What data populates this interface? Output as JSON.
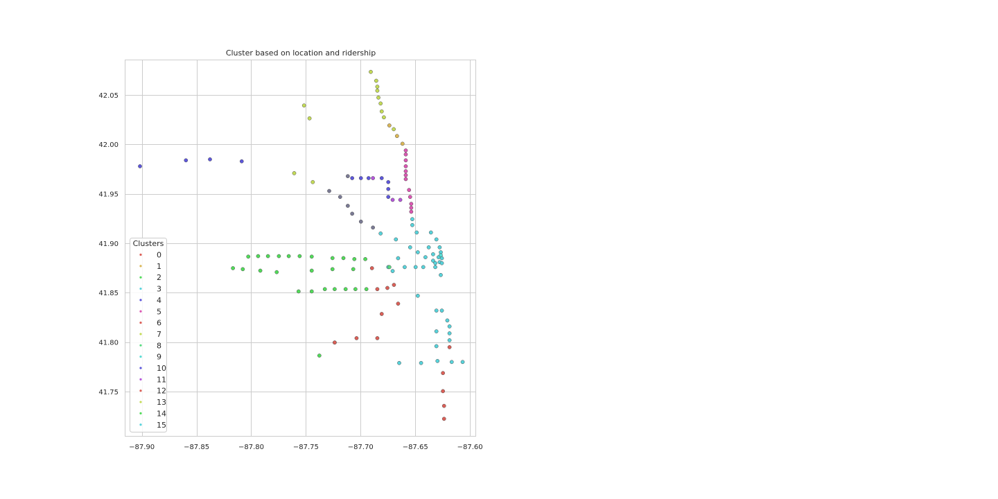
{
  "chart_data": {
    "type": "scatter",
    "title": "Cluster based on location and ridership",
    "xlabel": "",
    "ylabel": "",
    "xlim": [
      -87.915,
      -87.595
    ],
    "ylim": [
      41.705,
      42.085
    ],
    "xticks": [
      -87.9,
      -87.85,
      -87.8,
      -87.75,
      -87.7,
      -87.65,
      -87.6
    ],
    "xtick_labels": [
      "−87.90",
      "−87.85",
      "−87.80",
      "−87.75",
      "−87.70",
      "−87.65",
      "−87.60"
    ],
    "yticks": [
      41.75,
      41.8,
      41.85,
      41.9,
      41.95,
      42.0,
      42.05
    ],
    "ytick_labels": [
      "41.75",
      "41.80",
      "41.85",
      "41.90",
      "41.95",
      "42.00",
      "42.05"
    ],
    "grid": true,
    "legend": {
      "title": "Clusters",
      "placement": "lower-left",
      "entries": [
        "0",
        "1",
        "2",
        "3",
        "4",
        "5",
        "6",
        "7",
        "8",
        "9",
        "10",
        "11",
        "12",
        "13",
        "14",
        "15"
      ]
    },
    "series": [
      {
        "name": "0",
        "color": "#db5f57",
        "points": [
          [
            -87.6896,
            41.8747
          ],
          [
            -87.6847,
            41.8535
          ],
          [
            -87.6755,
            41.8547
          ],
          [
            -87.6695,
            41.8578
          ],
          [
            -87.6657,
            41.8388
          ],
          [
            -87.6807,
            41.8284
          ],
          [
            -87.7037,
            41.8039
          ],
          [
            -87.6847,
            41.8039
          ],
          [
            -87.6247,
            41.7686
          ],
          [
            -87.6247,
            41.7503
          ],
          [
            -87.6237,
            41.7354
          ],
          [
            -87.6237,
            41.7223
          ]
        ]
      },
      {
        "name": "1",
        "color": "#dbb757",
        "points": [
          [
            -87.6737,
            42.0191
          ],
          [
            -87.6667,
            42.0084
          ],
          [
            -87.6617,
            42.0006
          ]
        ]
      },
      {
        "name": "2",
        "color": "#52db5a",
        "points": [
          [
            -87.8027,
            41.8864
          ],
          [
            -87.7937,
            41.8869
          ],
          [
            -87.7847,
            41.8869
          ],
          [
            -87.7747,
            41.8869
          ],
          [
            -87.7657,
            41.8869
          ],
          [
            -87.7557,
            41.8869
          ],
          [
            -87.7447,
            41.8864
          ],
          [
            -87.7257,
            41.8849
          ],
          [
            -87.7157,
            41.8849
          ],
          [
            -87.7057,
            41.8839
          ],
          [
            -87.6957,
            41.8839
          ],
          [
            -87.8167,
            41.8747
          ],
          [
            -87.8077,
            41.8737
          ],
          [
            -87.7917,
            41.8722
          ],
          [
            -87.7767,
            41.8707
          ],
          [
            -87.7447,
            41.8722
          ],
          [
            -87.7257,
            41.8737
          ],
          [
            -87.7067,
            41.8737
          ],
          [
            -87.7567,
            41.8512
          ],
          [
            -87.7447,
            41.8512
          ],
          [
            -87.7327,
            41.8535
          ],
          [
            -87.7237,
            41.8535
          ],
          [
            -87.7137,
            41.8535
          ],
          [
            -87.7047,
            41.8535
          ],
          [
            -87.6947,
            41.8535
          ],
          [
            -87.7237,
            41.7995
          ],
          [
            -87.7377,
            41.7863
          ]
        ]
      },
      {
        "name": "3",
        "color": "#57d3db",
        "points": [
          [
            -87.6527,
            41.9243
          ],
          [
            -87.6527,
            41.9183
          ],
          [
            -87.6487,
            41.9108
          ],
          [
            -87.6357,
            41.9108
          ],
          [
            -87.6817,
            41.9098
          ],
          [
            -87.6677,
            41.9038
          ],
          [
            -87.6307,
            41.9038
          ],
          [
            -87.6547,
            41.8958
          ],
          [
            -87.6377,
            41.8958
          ],
          [
            -87.6277,
            41.8958
          ],
          [
            -87.6477,
            41.8908
          ],
          [
            -87.6337,
            41.8888
          ],
          [
            -87.6267,
            41.8908
          ],
          [
            -87.6657,
            41.8848
          ],
          [
            -87.6407,
            41.8858
          ],
          [
            -87.6337,
            41.8823
          ],
          [
            -87.6287,
            41.8858
          ],
          [
            -87.6257,
            41.8848
          ],
          [
            -87.6277,
            41.8808
          ],
          [
            -87.6257,
            41.8798
          ],
          [
            -87.6317,
            41.8798
          ],
          [
            -87.6747,
            41.8758
          ],
          [
            -87.6597,
            41.8758
          ],
          [
            -87.6497,
            41.8758
          ],
          [
            -87.6427,
            41.8758
          ],
          [
            -87.6317,
            41.8758
          ],
          [
            -87.6707,
            41.8718
          ],
          [
            -87.6267,
            41.8678
          ],
          [
            -87.6477,
            41.8468
          ],
          [
            -87.6307,
            41.8318
          ],
          [
            -87.6257,
            41.8318
          ],
          [
            -87.6207,
            41.8218
          ],
          [
            -87.6187,
            41.8158
          ],
          [
            -87.6187,
            41.8088
          ],
          [
            -87.6307,
            41.8108
          ],
          [
            -87.6187,
            41.8018
          ],
          [
            -87.6307,
            41.7958
          ],
          [
            -87.6297,
            41.7808
          ],
          [
            -87.6647,
            41.7788
          ],
          [
            -87.6447,
            41.7788
          ],
          [
            -87.6167,
            41.7798
          ],
          [
            -87.6067,
            41.7798
          ]
        ]
      },
      {
        "name": "4",
        "color": "#5d57db",
        "points": [
          [
            -87.8597,
            41.9838
          ],
          [
            -87.8377,
            41.9848
          ],
          [
            -87.8087,
            41.9828
          ],
          [
            -87.7077,
            41.9658
          ],
          [
            -87.6997,
            41.9658
          ],
          [
            -87.6927,
            41.9658
          ],
          [
            -87.6807,
            41.9658
          ],
          [
            -87.6747,
            41.9618
          ],
          [
            -87.6747,
            41.9548
          ],
          [
            -87.6747,
            41.9468
          ]
        ]
      },
      {
        "name": "5",
        "color": "#db57b2",
        "points": [
          [
            -87.6587,
            41.9938
          ],
          [
            -87.6587,
            41.9898
          ],
          [
            -87.6587,
            41.9838
          ],
          [
            -87.6587,
            41.9778
          ],
          [
            -87.6587,
            41.9728
          ],
          [
            -87.6587,
            41.9688
          ],
          [
            -87.6587,
            41.9648
          ],
          [
            -87.6557,
            41.9538
          ],
          [
            -87.6547,
            41.9468
          ],
          [
            -87.6537,
            41.9398
          ],
          [
            -87.6537,
            41.9358
          ],
          [
            -87.6537,
            41.9318
          ]
        ]
      },
      {
        "name": "6",
        "color": "#db5f57",
        "points": [
          [
            -87.7237,
            41.7995
          ]
        ]
      },
      {
        "name": "7",
        "color": "#c4db57",
        "points": [
          [
            -87.6907,
            42.0733
          ],
          [
            -87.6857,
            42.0643
          ],
          [
            -87.6847,
            42.0583
          ],
          [
            -87.6847,
            42.0543
          ],
          [
            -87.6837,
            42.0473
          ],
          [
            -87.6817,
            42.0413
          ],
          [
            -87.6807,
            42.0333
          ],
          [
            -87.6787,
            42.0273
          ],
          [
            -87.6697,
            42.0153
          ],
          [
            -87.7517,
            42.0393
          ],
          [
            -87.7467,
            42.0263
          ],
          [
            -87.7607,
            41.9708
          ],
          [
            -87.7437,
            41.9618
          ]
        ]
      },
      {
        "name": "8",
        "color": "#57db80",
        "points": [
          [
            -87.6737,
            41.8758
          ]
        ]
      },
      {
        "name": "9",
        "color": "#57dbd3",
        "points": [
          [
            -87.6267,
            41.8878
          ]
        ]
      },
      {
        "name": "10",
        "color": "#5d57db",
        "points": [
          [
            -87.9017,
            41.9778
          ]
        ]
      },
      {
        "name": "11",
        "color": "#b557db",
        "points": [
          [
            -87.6887,
            41.9658
          ],
          [
            -87.6707,
            41.9438
          ],
          [
            -87.6637,
            41.9438
          ]
        ]
      },
      {
        "name": "12",
        "color": "#db5f57",
        "points": [
          [
            -87.6187,
            41.7948
          ]
        ]
      },
      {
        "name": "13",
        "color": "#c4db57",
        "points": []
      },
      {
        "name": "14",
        "color": "#52db5a",
        "points": []
      },
      {
        "name": "15",
        "color": "#57d3db",
        "points": []
      },
      {
        "name": "",
        "color": "#7a7a94",
        "points": [
          [
            -87.7117,
            41.9678
          ],
          [
            -87.7287,
            41.9528
          ],
          [
            -87.7187,
            41.9468
          ],
          [
            -87.7117,
            41.9378
          ],
          [
            -87.7077,
            41.9298
          ],
          [
            -87.6997,
            41.9218
          ],
          [
            -87.6887,
            41.9158
          ]
        ]
      }
    ]
  }
}
